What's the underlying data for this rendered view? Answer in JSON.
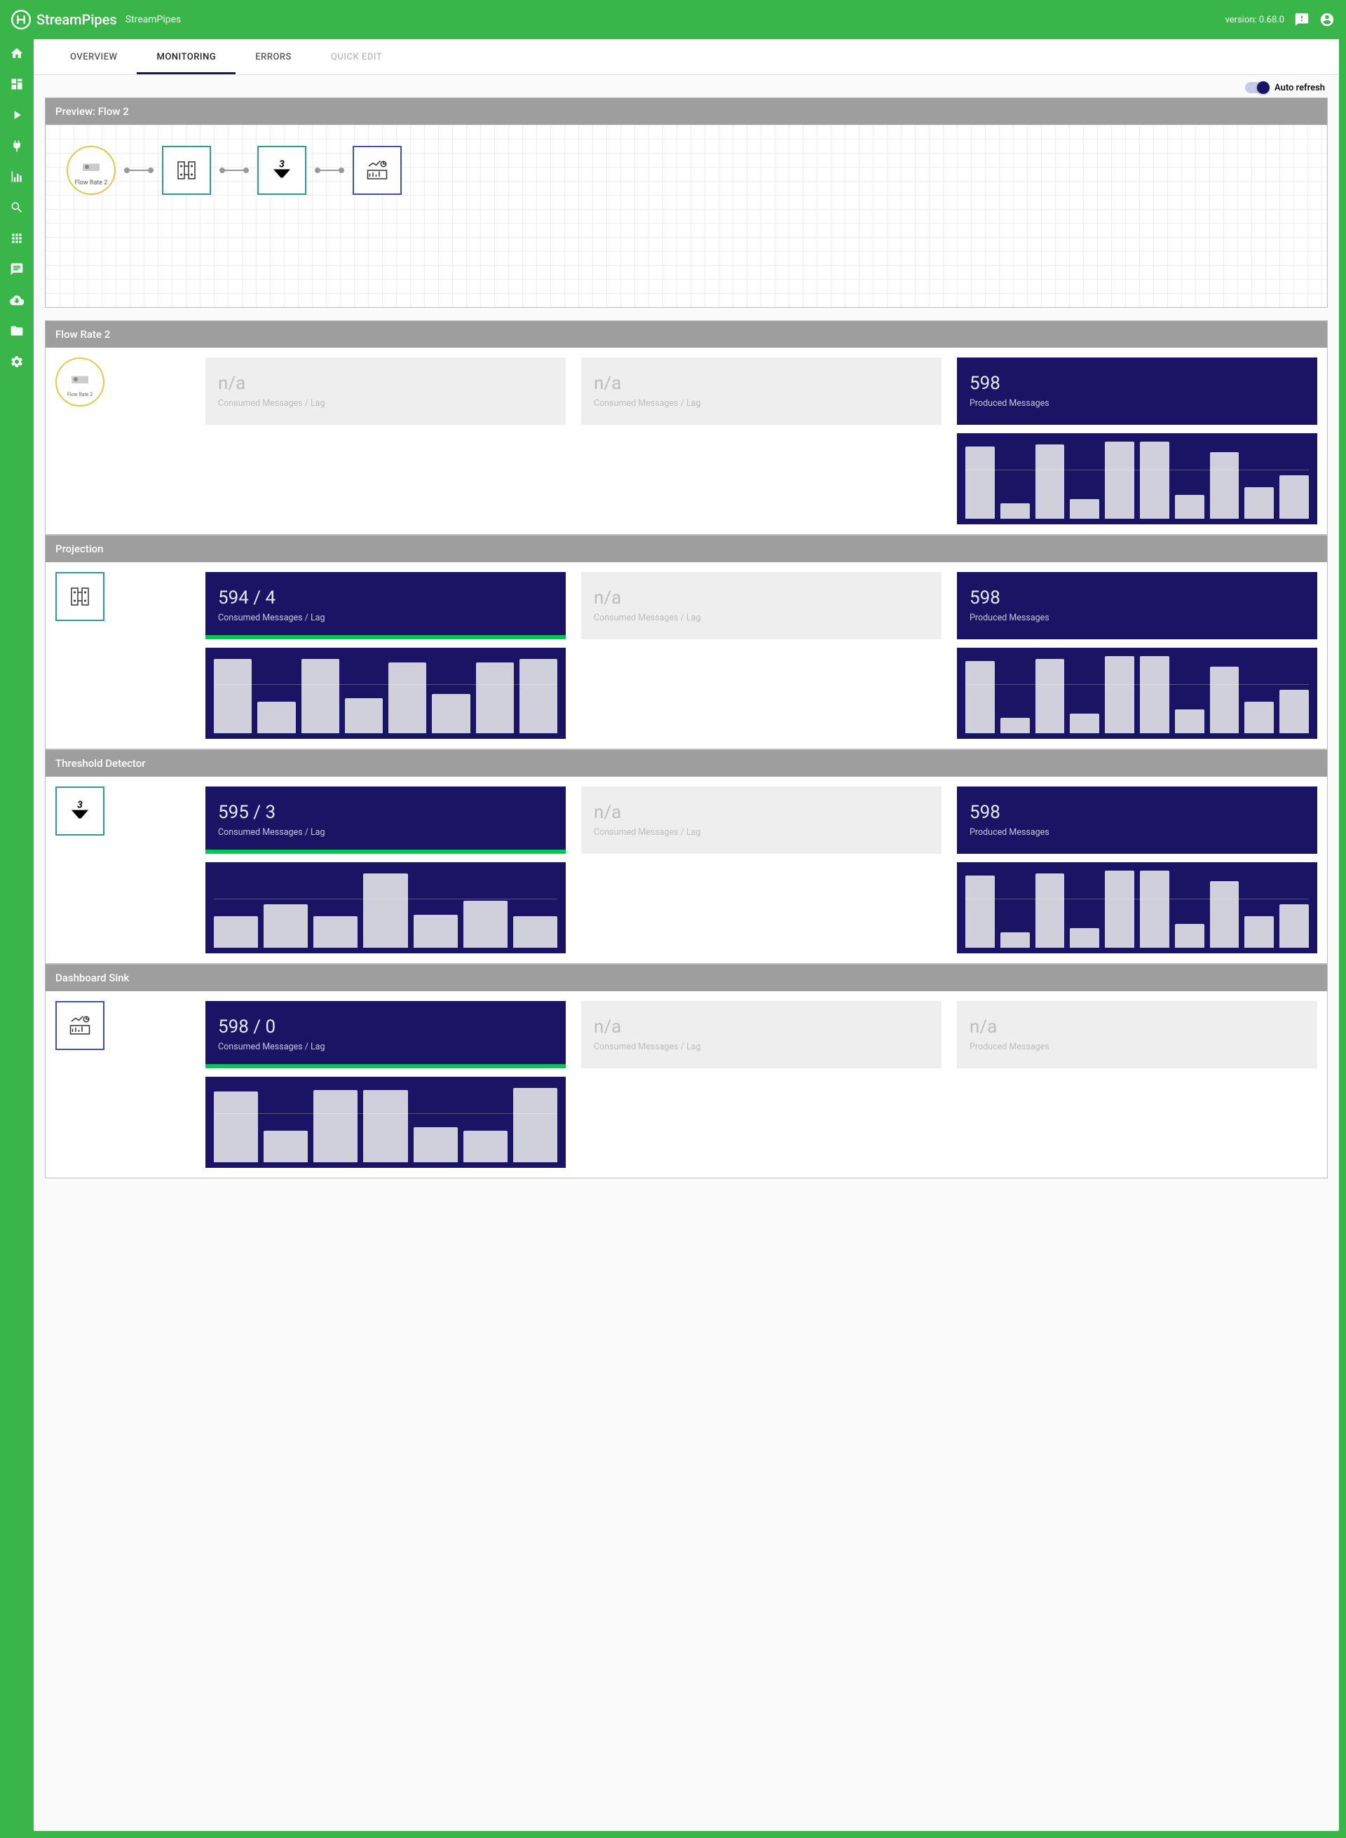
{
  "colors": {
    "brand_green": "#39b54a",
    "dark_navy": "#1b1464",
    "light_grey": "#eeeeee",
    "header_grey": "#9e9e9e",
    "progress_green": "#00c853",
    "bar_fill": "#d0d0dc"
  },
  "header": {
    "app_name": "StreamPipes",
    "subtitle": "StreamPipes",
    "version_text": "version: 0.68.0"
  },
  "tabs": [
    {
      "label": "OVERVIEW",
      "active": false
    },
    {
      "label": "MONITORING",
      "active": true
    },
    {
      "label": "ERRORS",
      "active": false
    },
    {
      "label": "QUICK EDIT",
      "disabled": true
    }
  ],
  "auto_refresh_label": "Auto refresh",
  "preview": {
    "title": "Preview: Flow 2",
    "source_label": "Flow Rate 2"
  },
  "sections": [
    {
      "title": "Flow Rate 2",
      "thumb_type": "circle",
      "thumb_label": "Flow Rate 2",
      "metrics": [
        {
          "style": "light",
          "value": "n/a",
          "label": "Consumed Messages / Lag",
          "progress": false,
          "chart": null
        },
        {
          "style": "light",
          "value": "n/a",
          "label": "Consumed Messages / Lag",
          "progress": false,
          "chart": null
        },
        {
          "style": "dark",
          "value": "598",
          "label": "Produced Messages",
          "progress": false,
          "chart": {
            "bars": [
              92,
              20,
              95,
              25,
              98,
              98,
              30,
              85,
              40,
              55
            ]
          }
        }
      ]
    },
    {
      "title": "Projection",
      "thumb_type": "teal",
      "metrics": [
        {
          "style": "dark",
          "value": "594 / 4",
          "label": "Consumed Messages / Lag",
          "progress": true,
          "chart": {
            "bars": [
              95,
              40,
              95,
              45,
              90,
              50,
              90,
              95
            ]
          }
        },
        {
          "style": "light",
          "value": "n/a",
          "label": "Consumed Messages / Lag",
          "progress": false,
          "chart": null
        },
        {
          "style": "dark",
          "value": "598",
          "label": "Produced Messages",
          "progress": false,
          "chart": {
            "bars": [
              92,
              20,
              95,
              25,
              98,
              98,
              30,
              85,
              40,
              55
            ]
          }
        }
      ]
    },
    {
      "title": "Threshold Detector",
      "thumb_type": "teal",
      "thumb_variant": "funnel",
      "metrics": [
        {
          "style": "dark",
          "value": "595 / 3",
          "label": "Consumed Messages / Lag",
          "progress": true,
          "chart": {
            "bars": [
              40,
              55,
              40,
              95,
              42,
              60,
              40
            ]
          }
        },
        {
          "style": "light",
          "value": "n/a",
          "label": "Consumed Messages / Lag",
          "progress": false,
          "chart": null
        },
        {
          "style": "dark",
          "value": "598",
          "label": "Produced Messages",
          "progress": false,
          "chart": {
            "bars": [
              92,
              20,
              95,
              25,
              98,
              98,
              30,
              85,
              40,
              55
            ]
          }
        }
      ]
    },
    {
      "title": "Dashboard Sink",
      "thumb_type": "blue",
      "metrics": [
        {
          "style": "dark",
          "value": "598 / 0",
          "label": "Consumed Messages / Lag",
          "progress": true,
          "chart": {
            "bars": [
              90,
              40,
              92,
              92,
              45,
              40,
              95
            ]
          }
        },
        {
          "style": "light",
          "value": "n/a",
          "label": "Consumed Messages / Lag",
          "progress": false,
          "chart": null
        },
        {
          "style": "light",
          "value": "n/a",
          "label": "Produced Messages",
          "progress": false,
          "chart": null
        }
      ]
    }
  ]
}
